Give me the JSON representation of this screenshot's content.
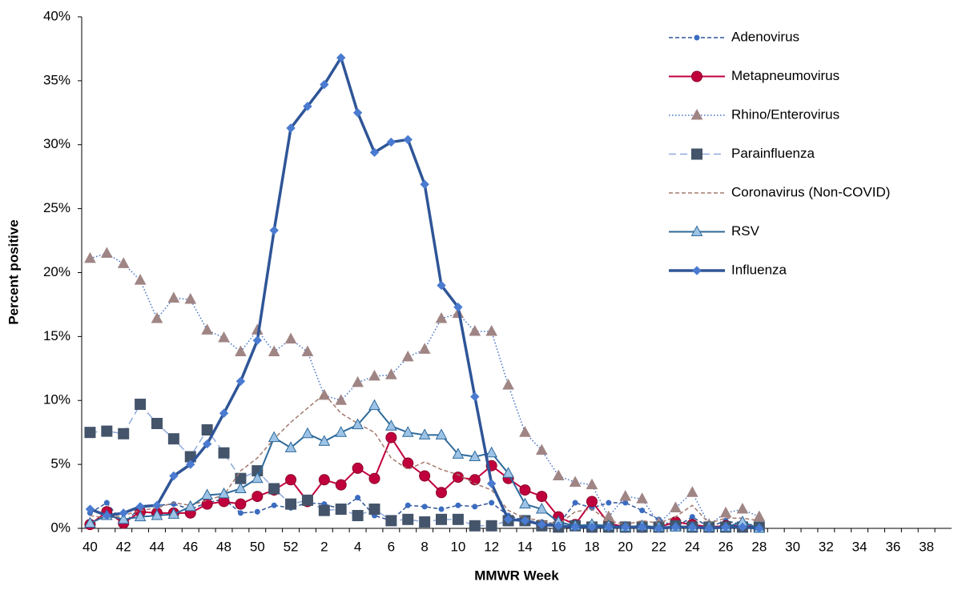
{
  "chart_data": {
    "type": "line",
    "x_label": "MMWR Week",
    "y_label": "Percent positive",
    "categories": [
      40,
      null,
      42,
      null,
      44,
      null,
      46,
      null,
      48,
      null,
      50,
      null,
      52,
      null,
      2,
      null,
      4,
      null,
      6,
      null,
      8,
      null,
      10,
      null,
      12,
      null,
      14,
      null,
      16,
      null,
      18,
      null,
      20,
      null,
      22,
      null,
      24,
      null,
      26,
      null,
      28,
      null,
      30,
      null,
      32,
      null,
      34,
      null,
      36,
      null,
      38,
      null
    ],
    "ylim": [
      0,
      40
    ],
    "yticks": [
      {
        "value": 0,
        "label": "0%"
      },
      {
        "value": 5,
        "label": "5%"
      },
      {
        "value": 10,
        "label": "10%"
      },
      {
        "value": 15,
        "label": "15%"
      },
      {
        "value": 20,
        "label": "20%"
      },
      {
        "value": 25,
        "label": "25%"
      },
      {
        "value": 30,
        "label": "30%"
      },
      {
        "value": 35,
        "label": "35%"
      },
      {
        "value": 40,
        "label": "40%"
      }
    ],
    "legend": "top-right",
    "series": [
      {
        "name": "Adenovirus",
        "color": "#2f5597",
        "marker": "circle",
        "marker_color": "#3a6cc0",
        "line_style": "dashed",
        "values": [
          1.2,
          2.0,
          0.4,
          1.6,
          1.8,
          1.9,
          1.5,
          2.0,
          2.3,
          1.2,
          1.3,
          1.8,
          1.6,
          2.0,
          1.9,
          1.5,
          2.4,
          1.0,
          0.6,
          1.8,
          1.7,
          1.5,
          1.8,
          1.7,
          2.0,
          1.0,
          0.6,
          0.5,
          0.3,
          2.0,
          1.6,
          2.0,
          2.0,
          1.4,
          0.7,
          0.1,
          0.9,
          0.1,
          0.6,
          0.3,
          0.3,
          null,
          null,
          null,
          null,
          null,
          null,
          null,
          null,
          null,
          null,
          null
        ]
      },
      {
        "name": "Metapneumovirus",
        "color": "#c0003c",
        "marker": "big-circle",
        "marker_color": "#c0003c",
        "line_style": "solid",
        "values": [
          0.3,
          1.3,
          0.4,
          1.3,
          1.2,
          1.2,
          1.2,
          1.9,
          2.1,
          1.9,
          2.5,
          3.0,
          3.8,
          2.1,
          3.8,
          3.4,
          4.7,
          3.9,
          7.1,
          5.1,
          4.1,
          2.8,
          4.0,
          3.8,
          4.9,
          3.9,
          3.0,
          2.5,
          0.9,
          0.3,
          2.1,
          0.4,
          0.1,
          0.1,
          0.1,
          0.5,
          0.3,
          0.1,
          0.2,
          0.2,
          0.1,
          null,
          null,
          null,
          null,
          null,
          null,
          null,
          null,
          null,
          null,
          null
        ]
      },
      {
        "name": "Rhino/Enterovirus",
        "color": "#4472c4",
        "marker": "triangle",
        "marker_color": "#a08585",
        "line_style": "dotted",
        "values": [
          21.1,
          21.5,
          20.7,
          19.4,
          16.4,
          18.0,
          17.9,
          15.5,
          14.9,
          13.8,
          15.5,
          13.8,
          14.8,
          13.8,
          10.4,
          10.0,
          11.4,
          11.9,
          12.0,
          13.4,
          14.0,
          16.4,
          16.8,
          15.4,
          15.4,
          11.2,
          7.5,
          6.1,
          4.1,
          3.6,
          3.4,
          0.9,
          2.5,
          2.3,
          0.4,
          1.6,
          2.8,
          0.3,
          1.2,
          1.5,
          0.9,
          null,
          null,
          null,
          null,
          null,
          null,
          null,
          null,
          null,
          null,
          null
        ]
      },
      {
        "name": "Parainfluenza",
        "color": "#8faadc",
        "marker": "square",
        "marker_color": "#44546a",
        "line_style": "long-dashed",
        "values": [
          7.5,
          7.6,
          7.4,
          9.7,
          8.2,
          7.0,
          5.6,
          7.7,
          5.9,
          3.9,
          4.5,
          3.1,
          1.9,
          2.2,
          1.4,
          1.5,
          1.0,
          1.5,
          0.6,
          0.7,
          0.5,
          0.7,
          0.7,
          0.2,
          0.2,
          0.6,
          0.6,
          0.2,
          0.1,
          0.2,
          0.1,
          0.1,
          0.1,
          0.1,
          0.1,
          0.2,
          0.1,
          0.1,
          0.1,
          0.1,
          0.1,
          null,
          null,
          null,
          null,
          null,
          null,
          null,
          null,
          null,
          null,
          null
        ]
      },
      {
        "name": "Coronavirus (Non-COVID)",
        "color": "#a37a6e",
        "marker": "none",
        "marker_color": "#a37a6e",
        "line_style": "dashed",
        "values": [
          1.0,
          0.8,
          1.0,
          1.4,
          1.6,
          2.0,
          1.8,
          2.2,
          2.6,
          4.5,
          5.5,
          7.0,
          8.3,
          9.4,
          10.5,
          9.0,
          8.2,
          7.5,
          5.5,
          4.6,
          5.2,
          4.6,
          4.2,
          3.5,
          3.0,
          1.4,
          0.8,
          0.6,
          0.3,
          1.3,
          1.5,
          0.6,
          0.3,
          0.6,
          0.4,
          0.9,
          1.8,
          0.4,
          0.8,
          0.8,
          0.6,
          null,
          null,
          null,
          null,
          null,
          null,
          null,
          null,
          null,
          null,
          null
        ]
      },
      {
        "name": "RSV",
        "color": "#2e6a9a",
        "marker": "triangle",
        "marker_color": "#9dc3e6",
        "line_style": "solid",
        "values": [
          0.4,
          1.0,
          0.7,
          0.9,
          1.0,
          1.1,
          1.7,
          2.6,
          2.7,
          3.1,
          3.9,
          7.1,
          6.3,
          7.4,
          6.8,
          7.5,
          8.1,
          9.6,
          8.0,
          7.5,
          7.3,
          7.3,
          5.8,
          5.6,
          5.9,
          4.3,
          1.9,
          1.5,
          0.5,
          0.2,
          0.3,
          0.2,
          0.1,
          0.2,
          0.1,
          0.1,
          0.1,
          0.1,
          0.1,
          0.5,
          0.0,
          null,
          null,
          null,
          null,
          null,
          null,
          null,
          null,
          null,
          null,
          null
        ]
      },
      {
        "name": "Influenza",
        "color": "#2f5597",
        "marker": "diamond",
        "marker_color": "#4a7bd0",
        "line_style": "thick",
        "values": [
          1.5,
          1.0,
          1.2,
          1.7,
          1.8,
          4.1,
          5.0,
          6.6,
          9.0,
          11.5,
          14.7,
          23.3,
          31.3,
          33.0,
          34.7,
          36.8,
          32.5,
          29.4,
          30.2,
          30.4,
          26.9,
          19.0,
          17.3,
          10.3,
          3.5,
          0.7,
          0.6,
          0.3,
          0.2,
          0.1,
          0.1,
          0.1,
          0.1,
          0.1,
          0.0,
          0.1,
          0.1,
          0.0,
          0.1,
          0.1,
          0.0,
          null,
          null,
          null,
          null,
          null,
          null,
          null,
          null,
          null,
          null,
          null
        ]
      }
    ]
  }
}
